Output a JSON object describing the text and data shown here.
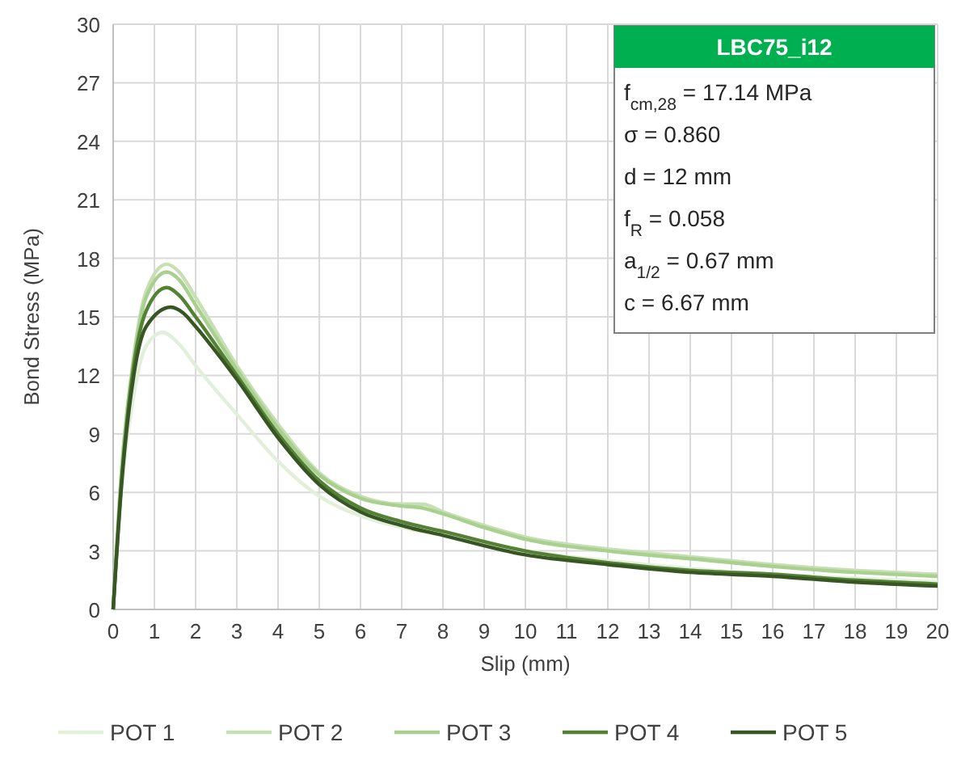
{
  "chart_data": {
    "type": "line",
    "xlabel": "Slip (mm)",
    "ylabel": "Bond Stress (MPa)",
    "xlim": [
      0,
      20
    ],
    "xticks": [
      0,
      1,
      2,
      3,
      4,
      5,
      6,
      7,
      8,
      9,
      10,
      11,
      12,
      13,
      14,
      15,
      16,
      17,
      18,
      19,
      20
    ],
    "ylim": [
      0,
      30
    ],
    "yticks": [
      0,
      3,
      6,
      9,
      12,
      15,
      18,
      21,
      24,
      27,
      30
    ],
    "grid": true,
    "legend": "bottom",
    "marker": "none",
    "line_style": "solid",
    "annotations": [
      "LBC75_i12",
      "f$_{cm,28}$  =  17.14 MPa",
      "σ  =  0.860",
      "d  =  12 mm",
      "f$_{R}$  =  0.058",
      "a$_{1/2}$  =  0.67 mm",
      "c  =  6.67 mm"
    ],
    "series": [
      {
        "name": "POT 1",
        "color": "#e2efda",
        "x": [
          0,
          0.2,
          0.5,
          0.8,
          1.2,
          1.6,
          2,
          3,
          4,
          5,
          6,
          7,
          8,
          10,
          12,
          14,
          16,
          18,
          20
        ],
        "values": [
          0,
          6,
          11,
          13.5,
          14.2,
          13.6,
          12.5,
          10,
          7.6,
          5.8,
          4.8,
          4.2,
          3.8,
          3,
          2.5,
          2.1,
          1.8,
          1.6,
          1.4
        ]
      },
      {
        "name": "POT 2",
        "color": "#c6e0b4",
        "x": [
          0,
          0.2,
          0.5,
          0.8,
          1.3,
          1.6,
          2,
          3,
          4,
          5,
          6,
          7,
          7.5,
          8,
          9,
          10,
          12,
          14,
          16,
          18,
          20
        ],
        "values": [
          0,
          7,
          13,
          16.3,
          17.7,
          17.3,
          16,
          12.5,
          9.5,
          7,
          5.8,
          5.4,
          5.4,
          5,
          4.3,
          3.7,
          3.1,
          2.7,
          2.3,
          2,
          1.8
        ]
      },
      {
        "name": "POT 3",
        "color": "#a9d08e",
        "x": [
          0,
          0.2,
          0.5,
          0.8,
          1.3,
          1.6,
          2,
          3,
          4,
          5,
          6,
          7,
          7.5,
          8,
          9,
          10,
          12,
          14,
          16,
          18,
          20
        ],
        "values": [
          0,
          7,
          12.8,
          16,
          17.3,
          16.9,
          15.6,
          12.3,
          9.3,
          6.9,
          5.7,
          5.3,
          5.2,
          4.9,
          4.2,
          3.6,
          3,
          2.6,
          2.2,
          1.9,
          1.7
        ]
      },
      {
        "name": "POT 4",
        "color": "#548235",
        "x": [
          0,
          0.2,
          0.5,
          0.8,
          1.3,
          1.6,
          2,
          3,
          4,
          5,
          6,
          7,
          8,
          10,
          12,
          14,
          16,
          18,
          20
        ],
        "values": [
          0,
          6.5,
          12.5,
          15.3,
          16.5,
          16.1,
          15,
          12,
          9,
          6.6,
          5.2,
          4.5,
          4,
          3,
          2.4,
          2,
          1.8,
          1.5,
          1.3
        ]
      },
      {
        "name": "POT 5",
        "color": "#375623",
        "x": [
          0,
          0.2,
          0.5,
          0.8,
          1.4,
          1.7,
          2,
          3,
          4,
          5,
          6,
          7,
          8,
          10,
          12,
          14,
          16,
          18,
          20
        ],
        "values": [
          0,
          6.3,
          12,
          14.5,
          15.5,
          15.2,
          14.5,
          11.8,
          8.8,
          6.4,
          5,
          4.3,
          3.8,
          2.8,
          2.3,
          1.9,
          1.7,
          1.4,
          1.2
        ]
      }
    ]
  }
}
